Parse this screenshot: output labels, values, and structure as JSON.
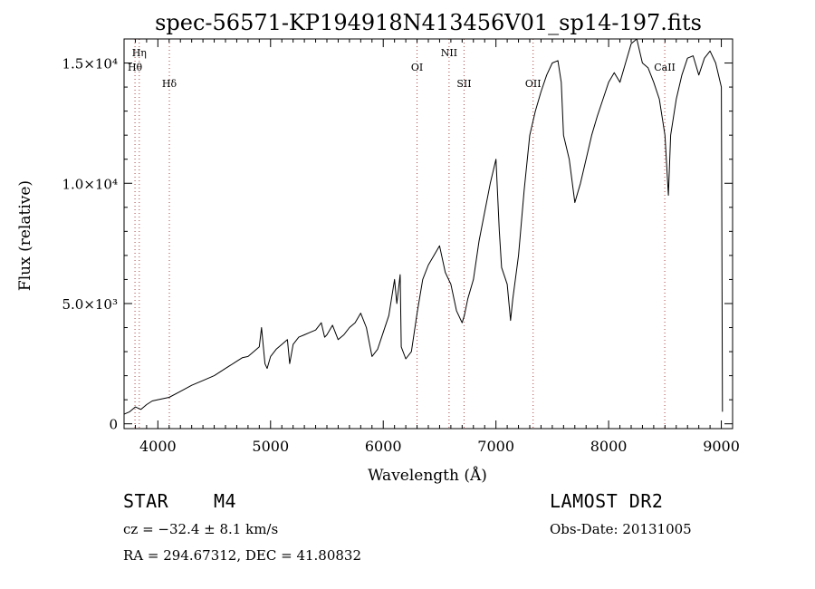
{
  "chart_data": {
    "type": "line",
    "title": "spec-56571-KP194918N413456V01_sp14-197.fits",
    "xlabel": "Wavelength (Å)",
    "ylabel": "Flux (relative)",
    "xlim": [
      3700,
      9100
    ],
    "ylim": [
      -200,
      16000
    ],
    "x_ticks": [
      4000,
      5000,
      6000,
      7000,
      8000,
      9000
    ],
    "x_tick_labels": [
      "4000",
      "5000",
      "6000",
      "7000",
      "8000",
      "9000"
    ],
    "y_ticks": [
      0,
      5000,
      10000,
      15000
    ],
    "y_tick_labels": [
      "0",
      "5.0×10³",
      "1.0×10⁴",
      "1.5×10⁴"
    ],
    "line_color": "#000000",
    "marker_color": "#aa4444",
    "lines": [
      {
        "label": "Hη",
        "wavelength": 3835,
        "row": 0
      },
      {
        "label": "Hθ",
        "wavelength": 3797,
        "row": 1
      },
      {
        "label": "Hδ",
        "wavelength": 4102,
        "row": 2
      },
      {
        "label": "OI",
        "wavelength": 6300,
        "row": 1
      },
      {
        "label": "NII",
        "wavelength": 6584,
        "row": 0
      },
      {
        "label": "SII",
        "wavelength": 6717,
        "row": 2
      },
      {
        "label": "OII",
        "wavelength": 7330,
        "row": 2
      },
      {
        "label": "CaII",
        "wavelength": 8498,
        "row": 1
      }
    ],
    "series": [
      {
        "name": "flux",
        "x": [
          3700,
          3750,
          3800,
          3850,
          3900,
          3950,
          4000,
          4100,
          4200,
          4300,
          4400,
          4500,
          4600,
          4700,
          4750,
          4800,
          4850,
          4900,
          4920,
          4950,
          4970,
          5000,
          5050,
          5100,
          5150,
          5170,
          5200,
          5250,
          5300,
          5350,
          5400,
          5450,
          5480,
          5500,
          5550,
          5600,
          5650,
          5700,
          5750,
          5800,
          5850,
          5900,
          5950,
          6000,
          6050,
          6100,
          6120,
          6150,
          6160,
          6200,
          6250,
          6300,
          6350,
          6400,
          6450,
          6500,
          6550,
          6580,
          6600,
          6650,
          6700,
          6720,
          6750,
          6800,
          6850,
          6900,
          6950,
          7000,
          7030,
          7050,
          7100,
          7130,
          7150,
          7200,
          7250,
          7300,
          7350,
          7400,
          7450,
          7500,
          7550,
          7580,
          7600,
          7650,
          7700,
          7750,
          7800,
          7850,
          7900,
          7950,
          8000,
          8050,
          8100,
          8150,
          8200,
          8250,
          8300,
          8350,
          8400,
          8450,
          8500,
          8530,
          8550,
          8600,
          8650,
          8700,
          8750,
          8800,
          8850,
          8900,
          8950,
          9000,
          9010
        ],
        "y": [
          400,
          500,
          700,
          600,
          800,
          950,
          1000,
          1100,
          1350,
          1600,
          1800,
          2000,
          2300,
          2600,
          2750,
          2800,
          3000,
          3200,
          4000,
          2500,
          2300,
          2800,
          3100,
          3300,
          3500,
          2500,
          3300,
          3600,
          3700,
          3800,
          3900,
          4200,
          3600,
          3700,
          4100,
          3500,
          3700,
          4000,
          4200,
          4600,
          4000,
          2800,
          3100,
          3800,
          4500,
          6000,
          5000,
          6200,
          3200,
          2700,
          3000,
          4600,
          6000,
          6600,
          7000,
          7400,
          6300,
          6000,
          5800,
          4700,
          4200,
          4500,
          5200,
          6000,
          7600,
          8800,
          10000,
          11000,
          8000,
          6500,
          5800,
          4300,
          5200,
          7000,
          9700,
          12000,
          13000,
          13800,
          14500,
          15000,
          15100,
          14200,
          12000,
          11000,
          9200,
          10000,
          11000,
          12000,
          12800,
          13500,
          14200,
          14600,
          14200,
          15000,
          15800,
          16000,
          15000,
          14800,
          14200,
          13500,
          12000,
          9500,
          12000,
          13500,
          14500,
          15200,
          15300,
          14500,
          15200,
          15500,
          15000,
          14000,
          500
        ]
      }
    ]
  },
  "info": {
    "class_label": "STAR",
    "subclass": "M4",
    "survey": "LAMOST DR2",
    "redshift": "cz = −32.4 ± 8.1 km/s",
    "obs_date": "Obs-Date: 20131005",
    "coords": "RA = 294.67312, DEC =  41.80832"
  }
}
